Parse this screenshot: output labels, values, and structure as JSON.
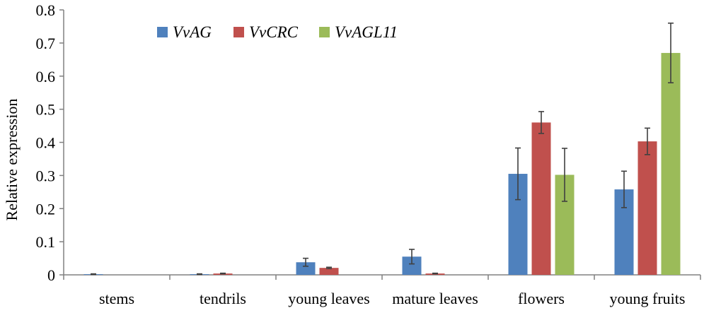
{
  "chart_data": {
    "type": "bar",
    "title": "",
    "xlabel": "",
    "ylabel": "Relative expression",
    "ylim": [
      0,
      0.8
    ],
    "yticks": [
      "0",
      "0.1",
      "0.2",
      "0.3",
      "0.4",
      "0.5",
      "0.6",
      "0.7",
      "0.8"
    ],
    "ytick_values": [
      0,
      0.1,
      0.2,
      0.3,
      0.4,
      0.5,
      0.6,
      0.7,
      0.8
    ],
    "categories": [
      "stems",
      "tendrils",
      "young leaves",
      "mature leaves",
      "flowers",
      "young fruits"
    ],
    "legend_position": "top-left",
    "grid": false,
    "series": [
      {
        "name": "VvAG",
        "color": "#4f81bd",
        "values": [
          0.002,
          0.002,
          0.038,
          0.055,
          0.305,
          0.258
        ],
        "errors": [
          0.001,
          0.001,
          0.012,
          0.022,
          0.078,
          0.055
        ]
      },
      {
        "name": "VvCRC",
        "color": "#c0504d",
        "values": [
          0.0,
          0.004,
          0.021,
          0.004,
          0.46,
          0.403
        ],
        "errors": [
          0.0,
          0.001,
          0.002,
          0.001,
          0.033,
          0.04
        ]
      },
      {
        "name": "VvAGL11",
        "color": "#9bbb59",
        "values": [
          0.0,
          0.0,
          0.0,
          0.0,
          0.302,
          0.67
        ],
        "errors": [
          0.0,
          0.0,
          0.0,
          0.0,
          0.08,
          0.09
        ]
      }
    ]
  }
}
